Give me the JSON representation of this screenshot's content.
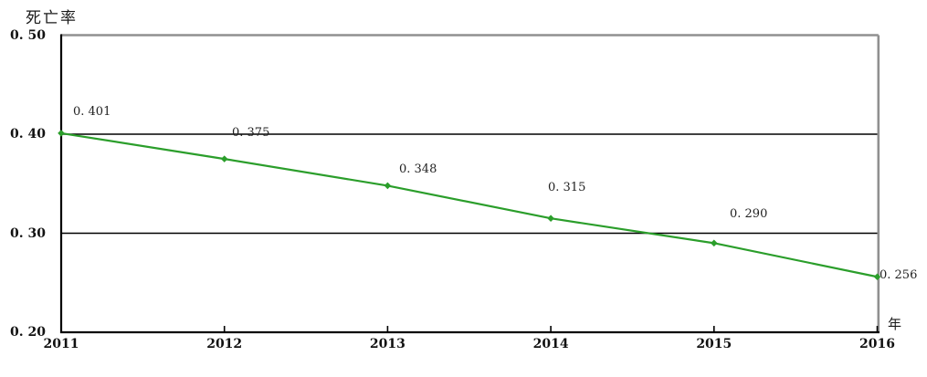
{
  "chart": {
    "y_axis_title": "死亡率",
    "x_axis_unit": "年"
  },
  "chart_data": {
    "type": "line",
    "title": "",
    "xlabel": "年",
    "ylabel": "死亡率",
    "x": [
      2011,
      2012,
      2013,
      2014,
      2015,
      2016
    ],
    "x_labels": [
      "2011",
      "2012",
      "2013",
      "2014",
      "2015",
      "2016"
    ],
    "series": [
      {
        "name": "死亡率",
        "values": [
          0.401,
          0.375,
          0.348,
          0.315,
          0.29,
          0.256
        ],
        "point_labels": [
          "0. 401",
          "0. 375",
          "0. 348",
          "0. 315",
          "0. 290",
          "0. 256"
        ],
        "color": "#2b9e2b",
        "marker": "diamond"
      }
    ],
    "y_ticks": [
      {
        "value": 0.5,
        "label": "0. 50"
      },
      {
        "value": 0.4,
        "label": "0. 40"
      },
      {
        "value": 0.3,
        "label": "0. 30"
      },
      {
        "value": 0.2,
        "label": "0. 20"
      }
    ],
    "ylim": [
      0.2,
      0.5
    ],
    "gridlines": [
      0.4,
      0.3
    ],
    "grid": "horizontal-only",
    "legend": "none",
    "colors": {
      "line": "#2b9e2b",
      "gridline": "#000000",
      "axis": "#000000",
      "plot_border": "#909090",
      "text": "#111111",
      "background": "#ffffff"
    }
  }
}
